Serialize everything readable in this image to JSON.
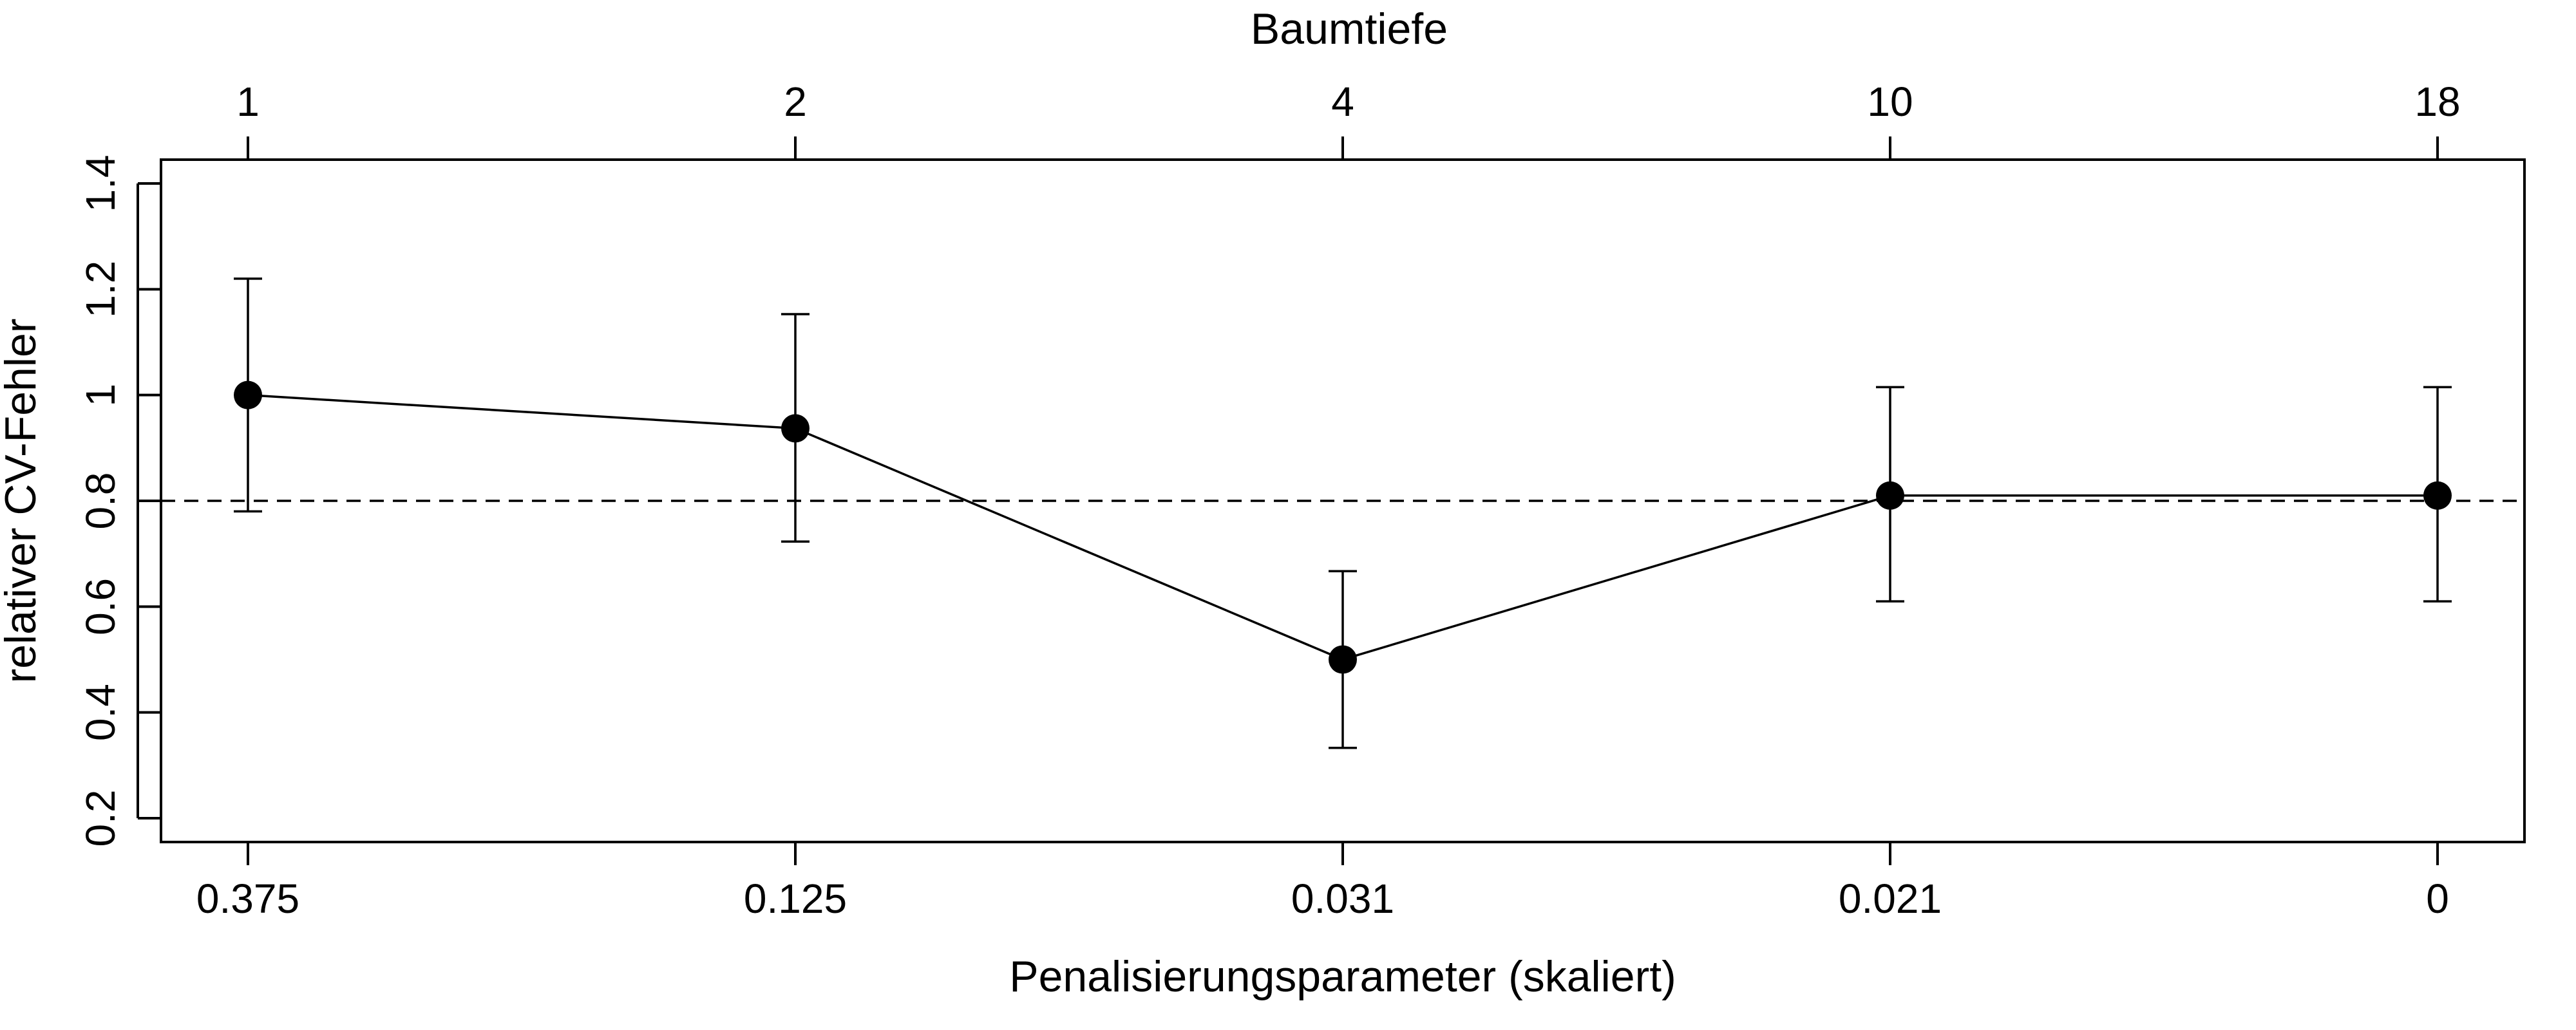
{
  "chart_data": {
    "type": "line",
    "title": "",
    "xlabel": "Penalisierungsparameter (skaliert)",
    "x2label": "Baumtiefe",
    "ylabel": "relativer CV-Fehler",
    "categories": [
      "0.375",
      "0.125",
      "0.031",
      "0.021",
      "0"
    ],
    "top_categories": [
      "1",
      "2",
      "4",
      "10",
      "18"
    ],
    "yticks": [
      "0.2",
      "0.4",
      "0.6",
      "0.8",
      "1",
      "1.2",
      "1.4"
    ],
    "ylim": [
      0.155,
      1.445
    ],
    "reference_line": 0.8,
    "grid": false,
    "series": [
      {
        "values": [
          1.0,
          0.937,
          0.5,
          0.81,
          0.81
        ],
        "lower": [
          0.78,
          0.723,
          0.333,
          0.61,
          0.61
        ],
        "upper": [
          1.22,
          1.153,
          0.667,
          1.015,
          1.015
        ]
      }
    ]
  }
}
